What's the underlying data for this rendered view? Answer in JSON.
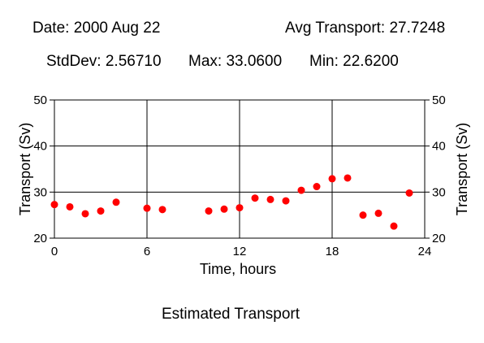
{
  "stats": {
    "date": "Date: 2000 Aug 22",
    "avg": "Avg Transport: 27.7248",
    "stddev": "StdDev: 2.56710",
    "max": "Max: 33.0600",
    "min": "Min: 22.6200"
  },
  "footer": {
    "title": "Estimated Transport"
  },
  "chart_data": {
    "type": "scatter",
    "title": "Estimated Transport",
    "xlabel": "Time, hours",
    "ylabel": "Transport (Sv)",
    "ylabel_right": "Transport (Sv)",
    "xlim": [
      0,
      24
    ],
    "ylim": [
      20,
      50
    ],
    "x_ticks": [
      0,
      6,
      12,
      18,
      24
    ],
    "y_ticks": [
      20,
      30,
      40,
      50
    ],
    "grid": true,
    "marker_color": "#ff0000",
    "series": [
      {
        "x": [
          0,
          1,
          2,
          3,
          4,
          6,
          7,
          10,
          11,
          12,
          13,
          14,
          15,
          16,
          17,
          18,
          19,
          20,
          21,
          22,
          23
        ],
        "y": [
          27.3,
          26.8,
          25.3,
          25.9,
          27.8,
          26.5,
          26.2,
          25.9,
          26.3,
          26.6,
          28.7,
          28.4,
          28.1,
          30.4,
          31.2,
          32.9,
          33.06,
          25.0,
          25.4,
          22.62,
          29.8
        ]
      }
    ]
  }
}
